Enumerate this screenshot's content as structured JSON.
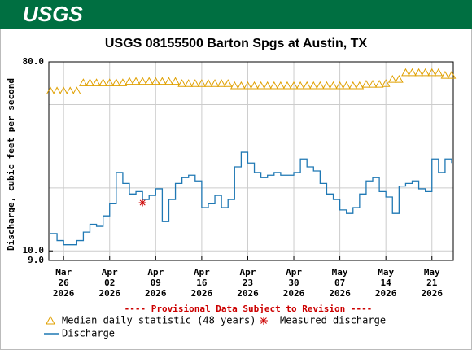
{
  "header": {
    "logo": "USGS"
  },
  "chart_data": {
    "type": "line",
    "title": "USGS 08155500 Barton Spgs at Austin, TX",
    "y_label": "Discharge, cubic feet per second",
    "annotation": "---- Provisional Data Subject to Revision ----",
    "log_scale": true,
    "grid": true,
    "ylim": [
      9,
      80
    ],
    "yticks": [
      {
        "value": 80,
        "label": "80.0"
      },
      {
        "value": 10,
        "label": "10.0"
      },
      {
        "value": 9,
        "label": "9.0"
      }
    ],
    "ygrid": [
      10,
      20,
      30,
      50
    ],
    "xlim": [
      "2026-03-24",
      "2026-05-24"
    ],
    "xticks": [
      {
        "value": "2026-03-26",
        "label": [
          "Mar",
          "26",
          "2026"
        ]
      },
      {
        "value": "2026-04-02",
        "label": [
          "Apr",
          "02",
          "2026"
        ]
      },
      {
        "value": "2026-04-09",
        "label": [
          "Apr",
          "09",
          "2026"
        ]
      },
      {
        "value": "2026-04-16",
        "label": [
          "Apr",
          "16",
          "2026"
        ]
      },
      {
        "value": "2026-04-23",
        "label": [
          "Apr",
          "23",
          "2026"
        ]
      },
      {
        "value": "2026-04-30",
        "label": [
          "Apr",
          "30",
          "2026"
        ]
      },
      {
        "value": "2026-05-07",
        "label": [
          "May",
          "07",
          "2026"
        ]
      },
      {
        "value": "2026-05-14",
        "label": [
          "May",
          "14",
          "2026"
        ]
      },
      {
        "value": "2026-05-21",
        "label": [
          "May",
          "21",
          "2026"
        ]
      }
    ],
    "x": [
      "2026-03-24",
      "2026-03-25",
      "2026-03-26",
      "2026-03-27",
      "2026-03-28",
      "2026-03-29",
      "2026-03-30",
      "2026-03-31",
      "2026-04-01",
      "2026-04-02",
      "2026-04-03",
      "2026-04-04",
      "2026-04-05",
      "2026-04-06",
      "2026-04-07",
      "2026-04-08",
      "2026-04-09",
      "2026-04-10",
      "2026-04-11",
      "2026-04-12",
      "2026-04-13",
      "2026-04-14",
      "2026-04-15",
      "2026-04-16",
      "2026-04-17",
      "2026-04-18",
      "2026-04-19",
      "2026-04-20",
      "2026-04-21",
      "2026-04-22",
      "2026-04-23",
      "2026-04-24",
      "2026-04-25",
      "2026-04-26",
      "2026-04-27",
      "2026-04-28",
      "2026-04-29",
      "2026-04-30",
      "2026-05-01",
      "2026-05-02",
      "2026-05-03",
      "2026-05-04",
      "2026-05-05",
      "2026-05-06",
      "2026-05-07",
      "2026-05-08",
      "2026-05-09",
      "2026-05-10",
      "2026-05-11",
      "2026-05-12",
      "2026-05-13",
      "2026-05-14",
      "2026-05-15",
      "2026-05-16",
      "2026-05-17",
      "2026-05-18",
      "2026-05-19",
      "2026-05-20",
      "2026-05-21",
      "2026-05-22",
      "2026-05-23",
      "2026-05-24"
    ],
    "series": [
      {
        "name": "Median daily statistic (48 years)",
        "marker": "triangle",
        "color": "#e0a000",
        "values": [
          58,
          58,
          58,
          58,
          58,
          63.5,
          63.5,
          63.5,
          63.5,
          63.5,
          63.5,
          63.5,
          64.5,
          64.5,
          64.5,
          64.5,
          64.5,
          64.5,
          64.5,
          64.5,
          63,
          63,
          63,
          63,
          63,
          63,
          63,
          63,
          61.5,
          61.5,
          61.5,
          61.5,
          61.5,
          61.5,
          61.5,
          61.5,
          61.5,
          61.5,
          61.5,
          61.5,
          61.5,
          61.5,
          61.5,
          61.5,
          61.5,
          61.5,
          61.5,
          61.5,
          62.5,
          62.5,
          62.5,
          63,
          66,
          66,
          71,
          71,
          71,
          71,
          71,
          71,
          69,
          69
        ]
      },
      {
        "name": "Measured discharge",
        "marker": "asterisk",
        "color": "#cc0000",
        "x": [
          "2026-04-07"
        ],
        "values": [
          17
        ]
      },
      {
        "name": "Discharge",
        "marker": "line",
        "color": "#1f78b4",
        "values": [
          12.1,
          11.2,
          10.7,
          10.7,
          11.2,
          12.3,
          13.4,
          13.1,
          14.7,
          16.8,
          23.7,
          21.0,
          18.7,
          19.2,
          17.6,
          18.4,
          19.8,
          13.8,
          17.6,
          21.0,
          22.4,
          23.0,
          21.6,
          16.1,
          16.8,
          18.4,
          16.1,
          17.6,
          25.2,
          29.6,
          26.3,
          23.7,
          22.4,
          23.0,
          23.7,
          23.0,
          23.0,
          23.7,
          27.5,
          25.2,
          24.1,
          21.0,
          18.7,
          17.6,
          15.7,
          15.1,
          16.1,
          18.7,
          21.6,
          22.4,
          19.2,
          18.1,
          15.1,
          20.4,
          21.0,
          21.6,
          19.8,
          19.2,
          27.5,
          23.7,
          27.5,
          26.3
        ]
      }
    ]
  }
}
